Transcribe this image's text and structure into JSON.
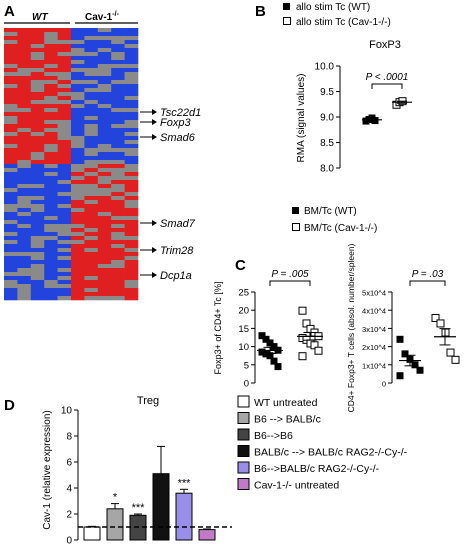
{
  "panels": {
    "A": {
      "letter": "A",
      "groups": [
        "WT",
        "Cav-1"
      ],
      "group2_sup": "-/-",
      "genes": [
        "Tsc22d1",
        "Foxp3",
        "Smad6",
        "Smad7",
        "Trim28",
        "Dcp1a"
      ]
    },
    "B": {
      "letter": "B",
      "legend": [
        {
          "label": "allo stim Tc (WT)",
          "marker": "filled-square"
        },
        {
          "label": "allo stim Tc (Cav-1-/-)",
          "marker": "open-square"
        }
      ],
      "title": "FoxP3",
      "ylabel": "RMA (signal values)",
      "pvalue": "P < .0001"
    },
    "C": {
      "letter": "C",
      "legend": [
        {
          "label": "BM/Tc (WT)",
          "marker": "filled-square"
        },
        {
          "label": "BM/Tc (Cav-1-/-)",
          "marker": "open-square"
        }
      ],
      "left_ylabel": "Foxp3+ of CD4+ Tc [%]",
      "left_pvalue": "P = .005",
      "right_ylabel": "CD4+ Foxp3+ T cells (absol. number/spleen)",
      "right_pvalue": "P = .03"
    },
    "D": {
      "letter": "D",
      "title": "Treg",
      "ylabel": "Cav-1 (relative expression)",
      "legend": [
        {
          "label": "WT untreated",
          "color": "#ffffff"
        },
        {
          "label": "B6 --> BALB/c",
          "color": "#a6a6a6"
        },
        {
          "label": "B6-->B6",
          "color": "#444444"
        },
        {
          "label": "BALB/c --> BALB/c RAG2-/-Cy-/-",
          "color": "#111111"
        },
        {
          "label": "B6-->BALB/c RAG2-/-Cy-/-",
          "color": "#9a8fe8"
        },
        {
          "label": "Cav-1-/- untreated",
          "color": "#c07ac8"
        }
      ]
    }
  },
  "chart_data": [
    {
      "type": "heatmap",
      "panel": "A",
      "columns": [
        "WT",
        "Cav-1-/-"
      ],
      "row_labels": [
        "Tsc22d1",
        "Foxp3",
        "Smad6",
        "Smad7",
        "Trim28",
        "Dcp1a"
      ],
      "colors": {
        "high": "#e02020",
        "mid": "#8a8a8a",
        "low": "#2244dd"
      }
    },
    {
      "type": "scatter",
      "panel": "B",
      "title": "FoxP3",
      "ylabel": "RMA (signal values)",
      "ylim": [
        8.0,
        10.0
      ],
      "yticks": [
        "8.0",
        "8.5",
        "9.0",
        "9.5",
        "10.0"
      ],
      "series": [
        {
          "name": "allo stim Tc (WT)",
          "values": [
            8.92,
            8.95,
            8.98,
            8.93
          ]
        },
        {
          "name": "allo stim Tc (Cav-1-/-)",
          "values": [
            9.25,
            9.3,
            9.32
          ]
        }
      ],
      "annotation": "P < .0001"
    },
    {
      "type": "scatter",
      "panel": "C-left",
      "ylabel": "Foxp3+ of CD4+ Tc [%]",
      "ylim": [
        0,
        25
      ],
      "yticks": [
        "0",
        "5",
        "10",
        "15",
        "20",
        "25"
      ],
      "series": [
        {
          "name": "BM/Tc (WT)",
          "values": [
            13,
            12,
            11,
            10,
            9,
            8.5,
            8,
            7.5,
            6,
            4.5
          ]
        },
        {
          "name": "BM/Tc (Cav-1-/-)",
          "values": [
            20,
            16.5,
            15,
            14,
            13,
            12.5,
            12,
            11,
            10.5,
            9,
            7.5
          ]
        }
      ],
      "annotation": "P = .005"
    },
    {
      "type": "scatter",
      "panel": "C-right",
      "ylabel": "CD4+ Foxp3+ T cells (absol. number/spleen)",
      "ylim": [
        0,
        50000
      ],
      "yticks": [
        "0",
        "1x10^4",
        "2x10^4",
        "3x10^4",
        "4x10^4",
        "5x10^4"
      ],
      "series": [
        {
          "name": "BM/Tc (WT)",
          "values": [
            24000,
            16000,
            13000,
            10000,
            7000,
            4000
          ]
        },
        {
          "name": "BM/Tc (Cav-1-/-)",
          "values": [
            36000,
            33000,
            28000,
            17000,
            13000
          ]
        }
      ],
      "annotation": "P = .03"
    },
    {
      "type": "bar",
      "panel": "D",
      "title": "Treg",
      "ylabel": "Cav-1 (relative expression)",
      "ylim": [
        0,
        10
      ],
      "yticks": [
        "0",
        "2",
        "4",
        "6",
        "8",
        "10"
      ],
      "categories": [
        "WT untreated",
        "B6 --> BALB/c",
        "B6-->B6",
        "BALB/c --> BALB/c RAG2-/-Cy-/-",
        "B6-->BALB/c RAG2-/-Cy-/-",
        "Cav-1-/- untreated"
      ],
      "values": [
        1.0,
        2.4,
        1.9,
        5.1,
        3.6,
        0.8
      ],
      "errors": [
        0.05,
        0.4,
        0.1,
        2.1,
        0.3,
        0.05
      ],
      "significance": [
        "",
        "*",
        "***",
        "",
        "***",
        ""
      ],
      "reference_line": 1
    }
  ]
}
